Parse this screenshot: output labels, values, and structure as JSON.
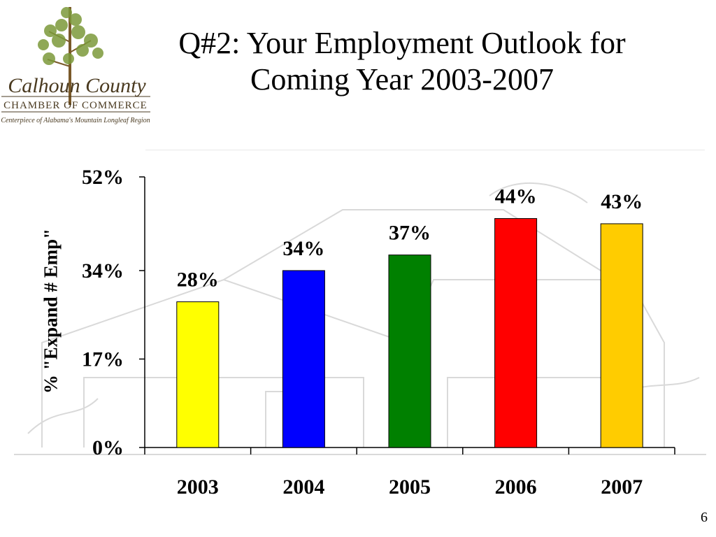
{
  "slide": {
    "title_line1": "Q#2: Your Employment Outlook for",
    "title_line2": "Coming Year 2003-2007",
    "page_number": "6"
  },
  "logo": {
    "name": "Calhoun County",
    "org": "CHAMBER OF COMMERCE",
    "tagline": "Centerpiece of Alabama's Mountain Longleaf Region"
  },
  "chart_data": {
    "type": "bar",
    "categories": [
      "2003",
      "2004",
      "2005",
      "2006",
      "2007"
    ],
    "values": [
      28,
      34,
      37,
      44,
      43
    ],
    "data_labels": [
      "28%",
      "34%",
      "37%",
      "44%",
      "43%"
    ],
    "colors": [
      "#ffff00",
      "#0000ff",
      "#008000",
      "#ff0000",
      "#ffcc00"
    ],
    "title": "",
    "xlabel": "",
    "ylabel": "% \"Expand # Emp\"",
    "ylim": [
      0,
      52
    ],
    "yticks": [
      0,
      17,
      34,
      52
    ],
    "ytick_labels": [
      "0%",
      "17%",
      "34%",
      "52%"
    ],
    "grid": false,
    "legend": "none"
  }
}
